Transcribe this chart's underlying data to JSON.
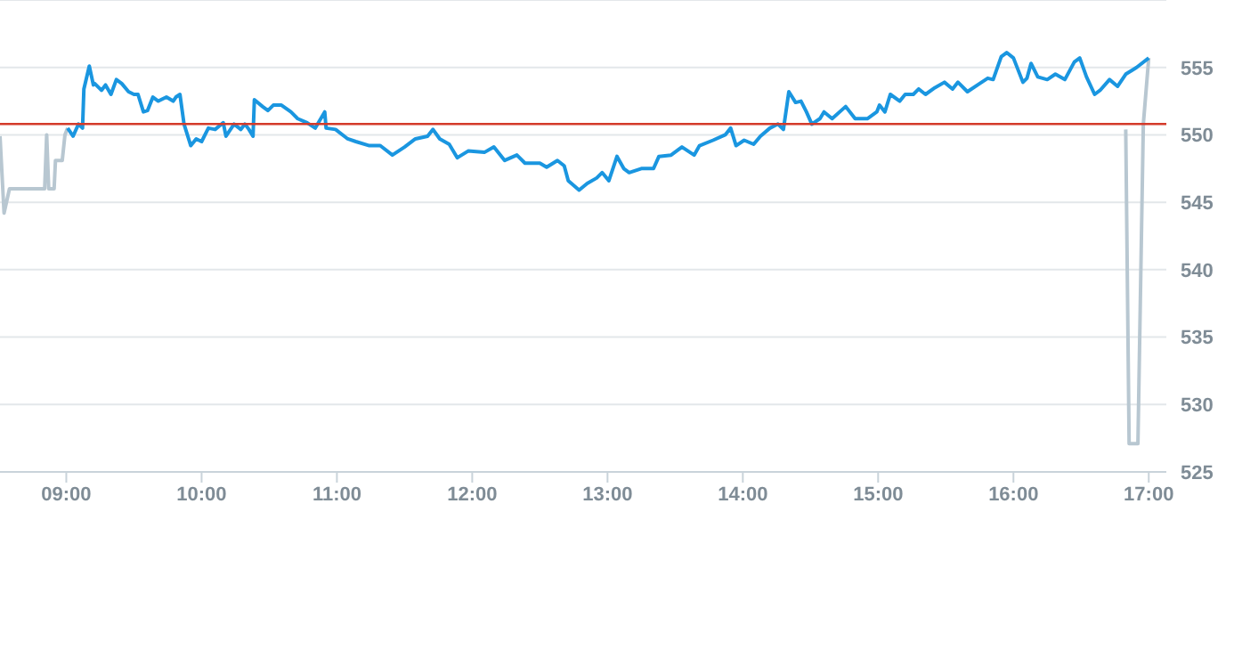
{
  "chart_data": {
    "type": "line",
    "xlim": [
      8.51,
      17.13
    ],
    "ylim": [
      525,
      560
    ],
    "xticks": [
      {
        "value": 9,
        "label": "09:00"
      },
      {
        "value": 10,
        "label": "10:00"
      },
      {
        "value": 11,
        "label": "11:00"
      },
      {
        "value": 12,
        "label": "12:00"
      },
      {
        "value": 13,
        "label": "13:00"
      },
      {
        "value": 14,
        "label": "14:00"
      },
      {
        "value": 15,
        "label": "15:00"
      },
      {
        "value": 16,
        "label": "16:00"
      },
      {
        "value": 17,
        "label": "17:00"
      }
    ],
    "yticks": [
      525,
      530,
      535,
      540,
      545,
      550,
      555
    ],
    "grid": "y",
    "marker": "none",
    "line_style": "solid",
    "ref_lines": [
      {
        "axis": "y",
        "value": 550.8,
        "color": "#d43a2a"
      }
    ],
    "series": [
      {
        "color": "#b8c7d1",
        "x": [
          8.51,
          8.54,
          8.58,
          8.84,
          8.855,
          8.87,
          8.91,
          8.92,
          8.97,
          8.99,
          9.01,
          12.0,
          16.83,
          16.855,
          16.92,
          16.96,
          17.0
        ],
        "values": [
          549.9,
          544.2,
          546.0,
          546.0,
          550.0,
          546.0,
          546.0,
          548.1,
          548.1,
          550.0,
          550.5,
          null,
          550.4,
          527.1,
          527.1,
          550.8,
          555.7
        ]
      },
      {
        "color": "#1a96e0",
        "x": [
          9.01,
          9.05,
          9.09,
          9.12,
          9.13,
          9.17,
          9.2,
          9.21,
          9.26,
          9.29,
          9.33,
          9.37,
          9.41,
          9.46,
          9.5,
          9.53,
          9.57,
          9.6,
          9.64,
          9.68,
          9.74,
          9.79,
          9.81,
          9.84,
          9.87,
          9.92,
          9.96,
          10.0,
          10.05,
          10.1,
          10.16,
          10.18,
          10.24,
          10.29,
          10.32,
          10.35,
          10.38,
          10.39,
          10.45,
          10.49,
          10.53,
          10.59,
          10.66,
          10.71,
          10.78,
          10.84,
          10.91,
          10.92,
          10.99,
          11.08,
          11.14,
          11.24,
          11.32,
          11.41,
          11.5,
          11.58,
          11.67,
          11.71,
          11.76,
          11.83,
          11.89,
          11.97,
          12.09,
          12.16,
          12.24,
          12.33,
          12.39,
          12.5,
          12.55,
          12.63,
          12.68,
          12.71,
          12.79,
          12.85,
          12.92,
          12.96,
          13.01,
          13.07,
          13.12,
          13.16,
          13.25,
          13.34,
          13.38,
          13.47,
          13.55,
          13.64,
          13.68,
          13.78,
          13.87,
          13.91,
          13.95,
          14.01,
          14.08,
          14.13,
          14.2,
          14.26,
          14.3,
          14.34,
          14.39,
          14.43,
          14.47,
          14.51,
          14.57,
          14.6,
          14.66,
          14.76,
          14.83,
          14.92,
          14.99,
          15.01,
          15.05,
          15.09,
          15.16,
          15.2,
          15.26,
          15.3,
          15.35,
          15.42,
          15.49,
          15.55,
          15.59,
          15.66,
          15.75,
          15.81,
          15.85,
          15.91,
          15.95,
          16.0,
          16.07,
          16.1,
          16.13,
          16.18,
          16.25,
          16.31,
          16.38,
          16.45,
          16.49,
          16.54,
          16.6,
          16.64,
          16.71,
          16.77,
          16.83,
          16.91,
          17.0
        ],
        "values": [
          550.5,
          549.9,
          550.8,
          550.5,
          553.4,
          555.1,
          553.7,
          553.8,
          553.3,
          553.7,
          553.0,
          554.1,
          553.8,
          553.2,
          553.0,
          553.0,
          551.7,
          551.8,
          552.8,
          552.5,
          552.8,
          552.5,
          552.8,
          553.0,
          550.8,
          549.2,
          549.7,
          549.5,
          550.5,
          550.4,
          550.9,
          549.9,
          550.8,
          550.4,
          550.8,
          550.4,
          549.9,
          552.6,
          552.1,
          551.8,
          552.2,
          552.2,
          551.7,
          551.2,
          550.9,
          550.5,
          551.7,
          550.5,
          550.4,
          549.7,
          549.5,
          549.2,
          549.2,
          548.5,
          549.1,
          549.7,
          549.9,
          550.4,
          549.7,
          549.3,
          548.3,
          548.8,
          548.7,
          549.1,
          548.1,
          548.5,
          547.9,
          547.9,
          547.6,
          548.1,
          547.7,
          546.6,
          545.9,
          546.4,
          546.8,
          547.2,
          546.6,
          548.4,
          547.5,
          547.2,
          547.5,
          547.5,
          548.4,
          548.5,
          549.1,
          548.5,
          549.2,
          549.6,
          550.0,
          550.5,
          549.2,
          549.6,
          549.3,
          549.9,
          550.5,
          550.8,
          550.4,
          553.2,
          552.4,
          552.5,
          551.7,
          550.8,
          551.2,
          551.7,
          551.2,
          552.1,
          551.2,
          551.2,
          551.7,
          552.2,
          551.7,
          553.0,
          552.5,
          553.0,
          553.0,
          553.4,
          553.0,
          553.5,
          553.9,
          553.4,
          553.9,
          553.2,
          553.8,
          554.2,
          554.1,
          555.8,
          556.1,
          555.7,
          553.9,
          554.2,
          555.3,
          554.3,
          554.1,
          554.5,
          554.1,
          555.4,
          555.7,
          554.3,
          553.0,
          553.3,
          554.1,
          553.6,
          554.5,
          555.0,
          555.7
        ]
      }
    ]
  }
}
